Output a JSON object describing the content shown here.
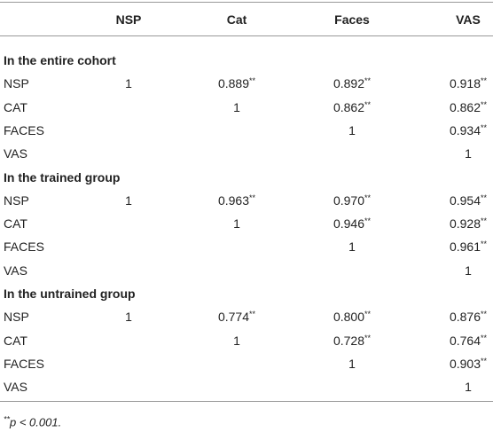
{
  "table": {
    "header": [
      "NSP",
      "Cat",
      "Faces",
      "VAS"
    ],
    "sections": [
      {
        "title": "In the entire cohort",
        "rows": [
          {
            "label": "NSP",
            "cells": [
              "1",
              {
                "text": "0.889",
                "sup": "**"
              },
              {
                "text": "0.892",
                "sup": "**"
              },
              {
                "text": "0.918",
                "sup": "**"
              }
            ]
          },
          {
            "label": "CAT",
            "cells": [
              null,
              "1",
              {
                "text": "0.862",
                "sup": "**"
              },
              {
                "text": "0.862",
                "sup": "**"
              }
            ]
          },
          {
            "label": "FACES",
            "cells": [
              null,
              null,
              "1",
              {
                "text": "0.934",
                "sup": "**"
              }
            ]
          },
          {
            "label": "VAS",
            "cells": [
              null,
              null,
              null,
              "1"
            ]
          }
        ]
      },
      {
        "title": "In the trained group",
        "rows": [
          {
            "label": "NSP",
            "cells": [
              "1",
              {
                "text": "0.963",
                "sup": "**"
              },
              {
                "text": "0.970",
                "sup": "**"
              },
              {
                "text": "0.954",
                "sup": "**"
              }
            ]
          },
          {
            "label": "CAT",
            "cells": [
              null,
              "1",
              {
                "text": "0.946",
                "sup": "**"
              },
              {
                "text": "0.928",
                "sup": "**"
              }
            ]
          },
          {
            "label": "FACES",
            "cells": [
              null,
              null,
              "1",
              {
                "text": "0.961",
                "sup": "**"
              }
            ]
          },
          {
            "label": "VAS",
            "cells": [
              null,
              null,
              null,
              "1"
            ]
          }
        ]
      },
      {
        "title": "In the untrained group",
        "rows": [
          {
            "label": "NSP",
            "cells": [
              "1",
              {
                "text": "0.774",
                "sup": "**"
              },
              {
                "text": "0.800",
                "sup": "**"
              },
              {
                "text": "0.876",
                "sup": "**"
              }
            ]
          },
          {
            "label": "CAT",
            "cells": [
              null,
              "1",
              {
                "text": "0.728",
                "sup": "**"
              },
              {
                "text": "0.764",
                "sup": "**"
              }
            ]
          },
          {
            "label": "FACES",
            "cells": [
              null,
              null,
              "1",
              {
                "text": "0.903",
                "sup": "**"
              }
            ]
          },
          {
            "label": "VAS",
            "cells": [
              null,
              null,
              null,
              "1"
            ]
          }
        ]
      }
    ],
    "footnote": {
      "mark": "**",
      "text": "p < 0.001."
    }
  }
}
